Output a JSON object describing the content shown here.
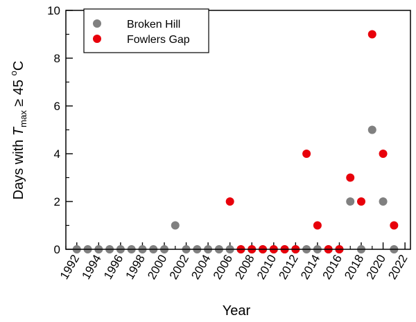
{
  "chart_data": {
    "type": "scatter",
    "title": "",
    "xlabel": "Year",
    "ylabel": {
      "prefix": "Days with ",
      "var": "T",
      "sub": "max",
      "relation": " ≥ 45 ",
      "deg": "o",
      "unit": "C"
    },
    "xlim": [
      1991,
      2022.5
    ],
    "ylim": [
      0,
      10
    ],
    "xticks": [
      1992,
      1994,
      1996,
      1998,
      2000,
      2002,
      2004,
      2006,
      2008,
      2010,
      2012,
      2014,
      2016,
      2018,
      2020,
      2022
    ],
    "yticks": [
      0,
      2,
      4,
      6,
      8,
      10
    ],
    "minor_x_step": 1,
    "minor_y_step": 1,
    "grid": false,
    "legend": {
      "placement": "top-left"
    },
    "series": [
      {
        "name": "Broken Hill",
        "color": "#808080",
        "points": [
          [
            1992,
            0
          ],
          [
            1993,
            0
          ],
          [
            1994,
            0
          ],
          [
            1995,
            0
          ],
          [
            1996,
            0
          ],
          [
            1997,
            0
          ],
          [
            1998,
            0
          ],
          [
            1999,
            0
          ],
          [
            2000,
            0
          ],
          [
            2001,
            1
          ],
          [
            2002,
            0
          ],
          [
            2003,
            0
          ],
          [
            2004,
            0
          ],
          [
            2005,
            0
          ],
          [
            2006,
            0
          ],
          [
            2007,
            0
          ],
          [
            2008,
            0
          ],
          [
            2009,
            0
          ],
          [
            2010,
            0
          ],
          [
            2011,
            0
          ],
          [
            2012,
            0
          ],
          [
            2013,
            0
          ],
          [
            2014,
            0
          ],
          [
            2015,
            0
          ],
          [
            2016,
            0
          ],
          [
            2017,
            2
          ],
          [
            2018,
            0
          ],
          [
            2019,
            5
          ],
          [
            2020,
            2
          ],
          [
            2021,
            0
          ]
        ]
      },
      {
        "name": "Fowlers Gap",
        "color": "#e8000b",
        "points": [
          [
            2006,
            2
          ],
          [
            2007,
            0
          ],
          [
            2008,
            0
          ],
          [
            2009,
            0
          ],
          [
            2010,
            0
          ],
          [
            2011,
            0
          ],
          [
            2012,
            0
          ],
          [
            2013,
            4
          ],
          [
            2014,
            1
          ],
          [
            2015,
            0
          ],
          [
            2016,
            0
          ],
          [
            2017,
            3
          ],
          [
            2018,
            2
          ],
          [
            2019,
            9
          ],
          [
            2020,
            4
          ],
          [
            2021,
            1
          ]
        ]
      }
    ]
  }
}
